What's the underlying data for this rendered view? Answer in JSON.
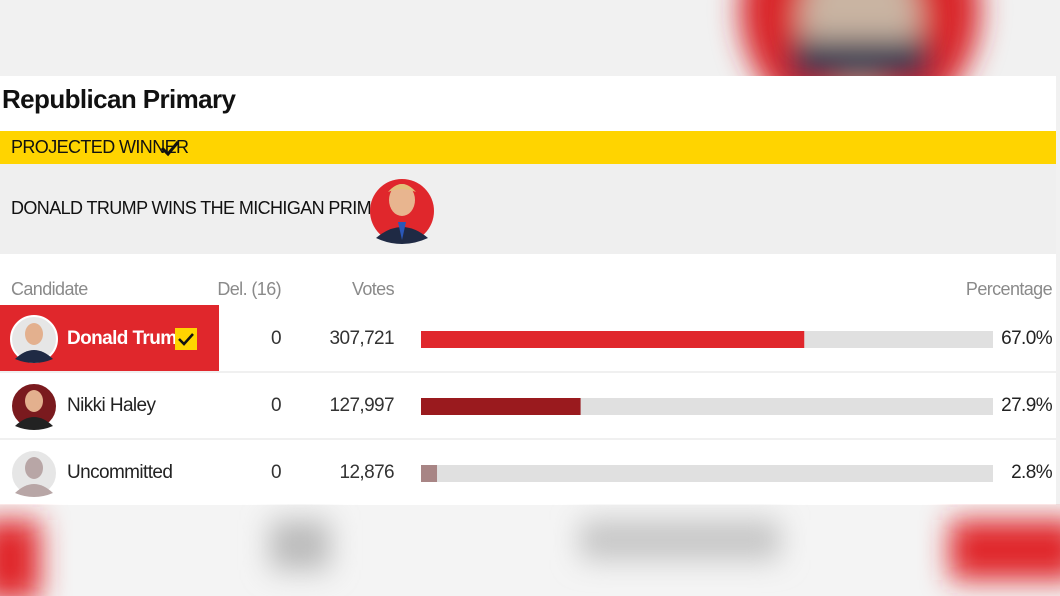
{
  "header": {
    "title": "Republican Primary"
  },
  "banner": {
    "label": "PROJECTED WINNER",
    "headline": "DONALD TRUMP WINS THE MICHIGAN PRIMARY"
  },
  "table": {
    "columns": [
      "Candidate",
      "Del. (16)",
      "Votes",
      "Percentage"
    ],
    "xlim": [
      0,
      100
    ],
    "rows": [
      {
        "name": "Donald Trump",
        "delegates": 0,
        "votes": "307,721",
        "percentage": 67.0,
        "percentage_label": "67.0%",
        "color": "#e0272c",
        "winner": true
      },
      {
        "name": "Nikki Haley",
        "delegates": 0,
        "votes": "127,997",
        "percentage": 27.9,
        "percentage_label": "27.9%",
        "color": "#9a1a1e",
        "winner": false
      },
      {
        "name": "Uncommitted",
        "delegates": 0,
        "votes": "12,876",
        "percentage": 2.8,
        "percentage_label": "2.8%",
        "color": "#a88585",
        "winner": false
      }
    ]
  }
}
